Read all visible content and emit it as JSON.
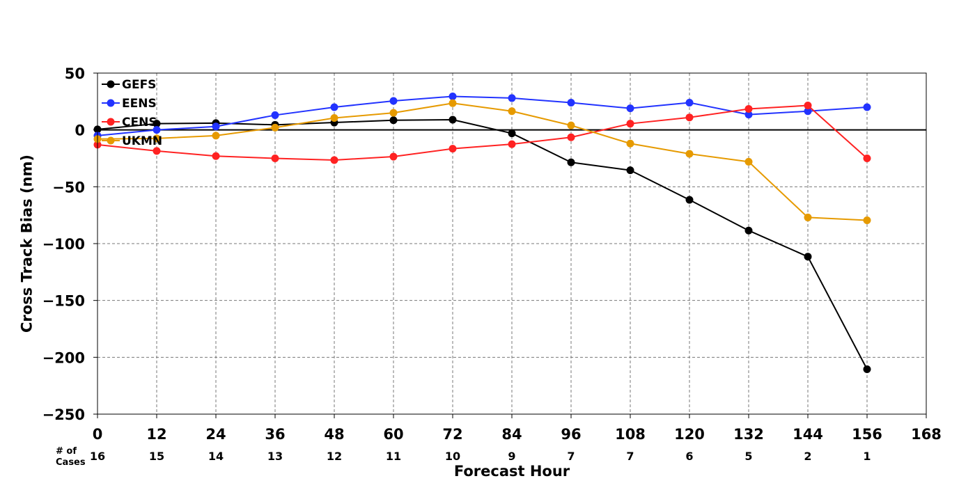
{
  "chart_data": {
    "type": "line",
    "title": "",
    "xlabel": "Forecast Hour",
    "ylabel": "Cross Track Bias (nm)",
    "xlim": [
      0,
      168
    ],
    "ylim": [
      -250,
      50
    ],
    "x_ticks": [
      0,
      12,
      24,
      36,
      48,
      60,
      72,
      84,
      96,
      108,
      120,
      132,
      144,
      156,
      168
    ],
    "y_ticks": [
      50,
      0,
      -50,
      -100,
      -150,
      -200,
      -250
    ],
    "y_tick_labels": [
      "50",
      "0",
      "−50",
      "−100",
      "−150",
      "−200",
      "−250"
    ],
    "grid": true,
    "grid_style": "dashed",
    "zero_line": true,
    "legend_position": "top-left",
    "cases": {
      "caption_line1": "# of",
      "caption_line2": "Cases",
      "x": [
        0,
        12,
        24,
        36,
        48,
        60,
        72,
        84,
        96,
        108,
        120,
        132,
        144,
        156
      ],
      "counts": [
        "16",
        "15",
        "14",
        "13",
        "12",
        "11",
        "10",
        "9",
        "7",
        "7",
        "6",
        "5",
        "2",
        "1"
      ]
    },
    "series": [
      {
        "name": "GEFS",
        "color": "#000000",
        "x": [
          0,
          12,
          24,
          36,
          48,
          60,
          72,
          84,
          96,
          108,
          120,
          132,
          144,
          156
        ],
        "values": [
          0.5,
          5.5,
          6,
          4.5,
          6.5,
          8.5,
          9,
          -3,
          -28.5,
          -35.5,
          -61.5,
          -88.5,
          -111.5,
          -210.5
        ]
      },
      {
        "name": "EENS",
        "color": "#2233ff",
        "x": [
          0,
          12,
          24,
          36,
          48,
          60,
          72,
          84,
          96,
          108,
          120,
          132,
          144,
          156
        ],
        "values": [
          -5,
          0,
          3,
          13,
          20,
          25.5,
          29.5,
          28,
          24,
          19,
          24,
          13.5,
          16.5,
          20
        ]
      },
      {
        "name": "CENS",
        "color": "#ff2222",
        "x": [
          0,
          12,
          24,
          36,
          48,
          60,
          72,
          84,
          96,
          108,
          120,
          132,
          144,
          156
        ],
        "values": [
          -13,
          -18.5,
          -23,
          -25,
          -26.5,
          -23.5,
          -16.5,
          -12.5,
          -6.5,
          5.5,
          11,
          18.5,
          21.5,
          -25
        ]
      },
      {
        "name": "UKMN",
        "color": "#e69a00",
        "x": [
          0,
          12,
          24,
          36,
          48,
          60,
          72,
          84,
          96,
          108,
          120,
          132,
          144,
          156
        ],
        "values": [
          -8,
          -7.5,
          -5,
          2,
          10.5,
          15,
          23.5,
          16.5,
          4,
          -12,
          -21,
          -28,
          -77,
          -79.5
        ]
      }
    ]
  }
}
